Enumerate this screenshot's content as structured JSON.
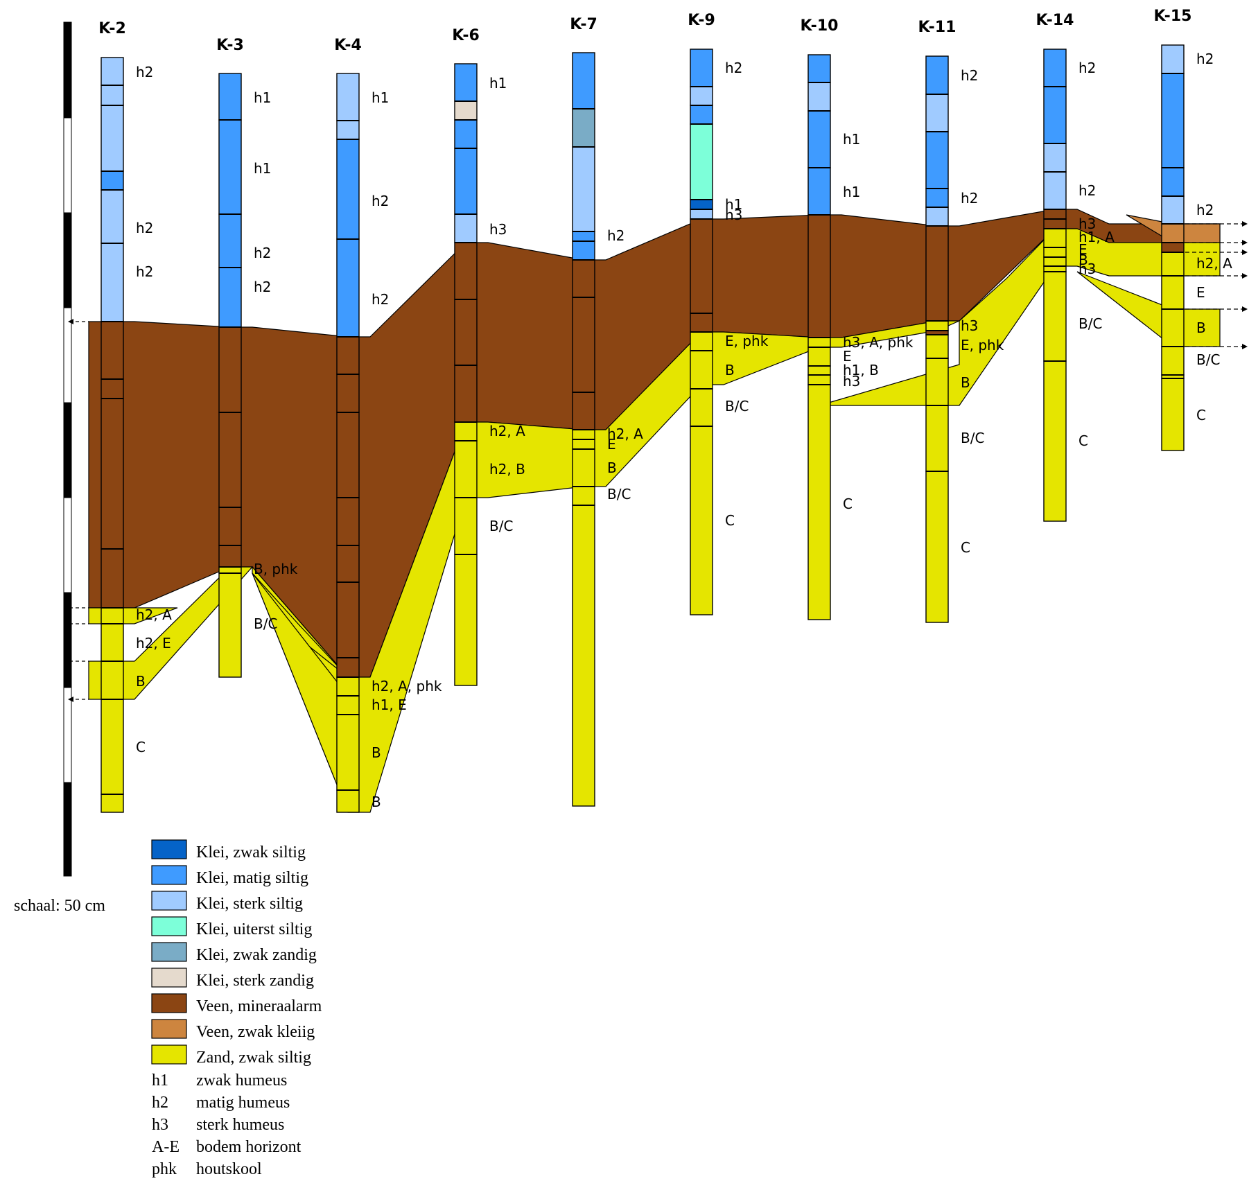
{
  "colors": {
    "klei_zwak_siltig": "#0563c8",
    "klei_matig_siltig": "#3f9bff",
    "klei_sterk_siltig": "#a0cbff",
    "klei_uiterst_siltig": "#7dffd9",
    "klei_zwak_zandig": "#7aacc6",
    "klei_sterk_zandig": "#e5dacd",
    "veen_mineraalarm": "#8b4513",
    "veen_zwak_kleiig": "#cd853f",
    "zand_zwak_siltig": "#e5e500"
  },
  "boreholes": [
    {
      "id": "K-2",
      "layers": [
        [
          "klei_sterk_siltig",
          83,
          123
        ],
        [
          "klei_sterk_siltig",
          123,
          152
        ],
        [
          "klei_sterk_siltig",
          152,
          247
        ],
        [
          "klei_matig_siltig",
          247,
          274
        ],
        [
          "klei_sterk_siltig",
          274,
          351
        ],
        [
          "klei_sterk_siltig",
          351,
          464
        ],
        [
          "veen_mineraalarm",
          464,
          547
        ],
        [
          "veen_mineraalarm",
          547,
          575
        ],
        [
          "veen_mineraalarm",
          575,
          792
        ],
        [
          "veen_mineraalarm",
          792,
          877
        ],
        [
          "zand_zwak_siltig",
          877,
          900
        ],
        [
          "zand_zwak_siltig",
          900,
          954
        ],
        [
          "zand_zwak_siltig",
          954,
          1009
        ],
        [
          "zand_zwak_siltig",
          1009,
          1146
        ],
        [
          "zand_zwak_siltig",
          1146,
          1172
        ]
      ],
      "labels": [
        [
          "h2",
          104
        ],
        [
          "h2",
          329
        ],
        [
          "h2",
          392
        ],
        [
          "h2, A",
          887
        ],
        [
          "h2, E",
          928
        ],
        [
          "B",
          983
        ],
        [
          "C",
          1078
        ]
      ]
    },
    {
      "id": "K-3",
      "layers": [
        [
          "klei_matig_siltig",
          106,
          173
        ],
        [
          "klei_matig_siltig",
          173,
          309
        ],
        [
          "klei_matig_siltig",
          309,
          386
        ],
        [
          "klei_matig_siltig",
          386,
          472
        ],
        [
          "veen_mineraalarm",
          472,
          595
        ],
        [
          "veen_mineraalarm",
          595,
          732
        ],
        [
          "veen_mineraalarm",
          732,
          787
        ],
        [
          "veen_mineraalarm",
          787,
          818
        ],
        [
          "zand_zwak_siltig",
          818,
          827
        ],
        [
          "zand_zwak_siltig",
          827,
          977
        ]
      ],
      "labels": [
        [
          "h1",
          141
        ],
        [
          "h1",
          243
        ],
        [
          "h2",
          365
        ],
        [
          "h2",
          414
        ],
        [
          "B, phk",
          821
        ],
        [
          "B/C",
          900
        ]
      ]
    },
    {
      "id": "K-4",
      "layers": [
        [
          "klei_sterk_siltig",
          106,
          174
        ],
        [
          "klei_sterk_siltig",
          174,
          201
        ],
        [
          "klei_matig_siltig",
          201,
          345
        ],
        [
          "klei_matig_siltig",
          345,
          486
        ],
        [
          "veen_mineraalarm",
          486,
          540
        ],
        [
          "veen_mineraalarm",
          540,
          595
        ],
        [
          "veen_mineraalarm",
          595,
          718
        ],
        [
          "veen_mineraalarm",
          718,
          787
        ],
        [
          "veen_mineraalarm",
          787,
          840
        ],
        [
          "veen_mineraalarm",
          840,
          949
        ],
        [
          "veen_mineraalarm",
          949,
          977
        ],
        [
          "zand_zwak_siltig",
          977,
          1004
        ],
        [
          "zand_zwak_siltig",
          1004,
          1031
        ],
        [
          "zand_zwak_siltig",
          1031,
          1140
        ],
        [
          "zand_zwak_siltig",
          1140,
          1172
        ]
      ],
      "labels": [
        [
          "h1",
          141
        ],
        [
          "h2",
          290
        ],
        [
          "h2",
          432
        ],
        [
          "h2, A, phk",
          990
        ],
        [
          "h1, E",
          1017
        ],
        [
          "B",
          1086
        ],
        [
          "B",
          1157
        ]
      ]
    },
    {
      "id": "K-6",
      "layers": [
        [
          "klei_matig_siltig",
          92,
          146
        ],
        [
          "klei_sterk_zandig",
          146,
          173
        ],
        [
          "klei_matig_siltig",
          173,
          214
        ],
        [
          "klei_matig_siltig",
          214,
          309
        ],
        [
          "klei_sterk_siltig",
          309,
          350
        ],
        [
          "veen_mineraalarm",
          350,
          432
        ],
        [
          "veen_mineraalarm",
          432,
          527
        ],
        [
          "veen_mineraalarm",
          527,
          609
        ],
        [
          "zand_zwak_siltig",
          609,
          636
        ],
        [
          "zand_zwak_siltig",
          636,
          718
        ],
        [
          "zand_zwak_siltig",
          718,
          800
        ],
        [
          "zand_zwak_siltig",
          800,
          989
        ]
      ],
      "labels": [
        [
          "h1",
          120
        ],
        [
          "h3",
          331
        ],
        [
          "h2, A",
          622
        ],
        [
          "h2, B",
          677
        ],
        [
          "B/C",
          759
        ]
      ]
    },
    {
      "id": "K-7",
      "layers": [
        [
          "klei_matig_siltig",
          76,
          157
        ],
        [
          "klei_zwak_zandig",
          157,
          212
        ],
        [
          "klei_sterk_siltig",
          212,
          334
        ],
        [
          "klei_matig_siltig",
          334,
          348
        ],
        [
          "klei_matig_siltig",
          348,
          375
        ],
        [
          "veen_mineraalarm",
          375,
          429
        ],
        [
          "veen_mineraalarm",
          429,
          566
        ],
        [
          "veen_mineraalarm",
          566,
          620
        ],
        [
          "zand_zwak_siltig",
          620,
          634
        ],
        [
          "zand_zwak_siltig",
          634,
          648
        ],
        [
          "zand_zwak_siltig",
          648,
          702
        ],
        [
          "zand_zwak_siltig",
          702,
          729
        ],
        [
          "zand_zwak_siltig",
          729,
          1163
        ]
      ],
      "labels": [
        [
          "h2",
          340
        ],
        [
          "h2, A",
          626
        ],
        [
          "E",
          641
        ],
        [
          "B",
          675
        ],
        [
          "B/C",
          713
        ]
      ]
    },
    {
      "id": "K-9",
      "layers": [
        [
          "klei_matig_siltig",
          71,
          125
        ],
        [
          "klei_sterk_siltig",
          125,
          152
        ],
        [
          "klei_matig_siltig",
          152,
          179
        ],
        [
          "klei_uiterst_siltig",
          179,
          288
        ],
        [
          "klei_zwak_siltig",
          288,
          302
        ],
        [
          "klei_sterk_siltig",
          302,
          316
        ],
        [
          "veen_mineraalarm",
          316,
          452
        ],
        [
          "veen_mineraalarm",
          452,
          479
        ],
        [
          "zand_zwak_siltig",
          479,
          506
        ],
        [
          "zand_zwak_siltig",
          506,
          561
        ],
        [
          "zand_zwak_siltig",
          561,
          615
        ],
        [
          "zand_zwak_siltig",
          615,
          887
        ]
      ],
      "labels": [
        [
          "h2",
          98
        ],
        [
          "h1",
          295
        ],
        [
          "h3",
          310
        ],
        [
          "E, phk",
          492
        ],
        [
          "B",
          534
        ],
        [
          "B/C",
          586
        ],
        [
          "C",
          751
        ]
      ]
    },
    {
      "id": "K-10",
      "layers": [
        [
          "klei_matig_siltig",
          79,
          119
        ],
        [
          "klei_sterk_siltig",
          119,
          160
        ],
        [
          "klei_matig_siltig",
          160,
          242
        ],
        [
          "klei_matig_siltig",
          242,
          310
        ],
        [
          "veen_mineraalarm",
          310,
          487
        ],
        [
          "zand_zwak_siltig",
          487,
          501
        ],
        [
          "zand_zwak_siltig",
          501,
          528
        ],
        [
          "zand_zwak_siltig",
          528,
          541
        ],
        [
          "zand_zwak_siltig",
          541,
          555
        ],
        [
          "zand_zwak_siltig",
          555,
          894
        ]
      ],
      "labels": [
        [
          "h1",
          201
        ],
        [
          "h1",
          277
        ],
        [
          "h3, A, phk",
          494
        ],
        [
          "E",
          514
        ],
        [
          "h1, B",
          534
        ],
        [
          "h3",
          550
        ],
        [
          "C",
          727
        ]
      ]
    },
    {
      "id": "K-11",
      "layers": [
        [
          "klei_matig_siltig",
          81,
          136
        ],
        [
          "klei_sterk_siltig",
          136,
          190
        ],
        [
          "klei_matig_siltig",
          190,
          272
        ],
        [
          "klei_matig_siltig",
          272,
          299
        ],
        [
          "klei_sterk_siltig",
          299,
          326
        ],
        [
          "veen_mineraalarm",
          326,
          463
        ],
        [
          "zand_zwak_siltig",
          463,
          477
        ],
        [
          "veen_mineraalarm",
          477,
          483
        ],
        [
          "zand_zwak_siltig",
          483,
          517
        ],
        [
          "zand_zwak_siltig",
          517,
          585
        ],
        [
          "zand_zwak_siltig",
          585,
          680
        ],
        [
          "zand_zwak_siltig",
          680,
          898
        ]
      ],
      "labels": [
        [
          "h2",
          109
        ],
        [
          "h2",
          286
        ],
        [
          "h3",
          470
        ],
        [
          "E, phk",
          498
        ],
        [
          "B",
          552
        ],
        [
          "B/C",
          632
        ],
        [
          "C",
          790
        ]
      ]
    },
    {
      "id": "K-14",
      "layers": [
        [
          "klei_matig_siltig",
          71,
          125
        ],
        [
          "klei_matig_siltig",
          125,
          207
        ],
        [
          "klei_sterk_siltig",
          207,
          248
        ],
        [
          "klei_sterk_siltig",
          248,
          302
        ],
        [
          "veen_mineraalarm",
          302,
          316
        ],
        [
          "veen_mineraalarm",
          316,
          330
        ],
        [
          "zand_zwak_siltig",
          330,
          357
        ],
        [
          "zand_zwak_siltig",
          357,
          371
        ],
        [
          "zand_zwak_siltig",
          371,
          384
        ],
        [
          "zand_zwak_siltig",
          384,
          392
        ],
        [
          "zand_zwak_siltig",
          392,
          521
        ],
        [
          "zand_zwak_siltig",
          521,
          752
        ]
      ],
      "labels": [
        [
          "h2",
          98
        ],
        [
          "h2",
          275
        ],
        [
          "h3",
          323
        ],
        [
          "h1, A",
          342
        ],
        [
          "E",
          360
        ],
        [
          "B",
          375
        ],
        [
          "h3",
          388
        ],
        [
          "B/C",
          467
        ],
        [
          "C",
          636
        ]
      ]
    },
    {
      "id": "K-15",
      "layers": [
        [
          "klei_sterk_siltig",
          65,
          106
        ],
        [
          "klei_matig_siltig",
          106,
          242
        ],
        [
          "klei_matig_siltig",
          242,
          283
        ],
        [
          "klei_sterk_siltig",
          283,
          323
        ],
        [
          "veen_zwak_kleiig",
          323,
          350
        ],
        [
          "veen_mineraalarm",
          350,
          364
        ],
        [
          "zand_zwak_siltig",
          364,
          398
        ],
        [
          "zand_zwak_siltig",
          398,
          446
        ],
        [
          "zand_zwak_siltig",
          446,
          500
        ],
        [
          "zand_zwak_siltig",
          500,
          541
        ],
        [
          "zand_zwak_siltig",
          541,
          546
        ],
        [
          "zand_zwak_siltig",
          546,
          650
        ]
      ],
      "labels": [
        [
          "h2",
          85
        ],
        [
          "h2",
          303
        ],
        [
          "h2, A",
          380
        ],
        [
          "E",
          422
        ],
        [
          "B",
          473
        ],
        [
          "B/C",
          519
        ],
        [
          "C",
          599
        ]
      ]
    }
  ],
  "legend": {
    "items": [
      {
        "key": "klei_zwak_siltig",
        "label": "Klei, zwak siltig"
      },
      {
        "key": "klei_matig_siltig",
        "label": "Klei, matig siltig"
      },
      {
        "key": "klei_sterk_siltig",
        "label": "Klei, sterk siltig"
      },
      {
        "key": "klei_uiterst_siltig",
        "label": "Klei, uiterst siltig"
      },
      {
        "key": "klei_zwak_zandig",
        "label": "Klei, zwak zandig"
      },
      {
        "key": "klei_sterk_zandig",
        "label": "Klei, sterk zandig"
      },
      {
        "key": "veen_mineraalarm",
        "label": "Veen, mineraalarm"
      },
      {
        "key": "veen_zwak_kleiig",
        "label": "Veen, zwak kleiig"
      },
      {
        "key": "zand_zwak_siltig",
        "label": "Zand, zwak siltig"
      }
    ],
    "abbreviations": [
      {
        "code": "h1",
        "meaning": "zwak humeus"
      },
      {
        "code": "h2",
        "meaning": "matig humeus"
      },
      {
        "code": "h3",
        "meaning": "sterk humeus"
      },
      {
        "code": "A-E",
        "meaning": "bodem horizont"
      },
      {
        "code": "phk",
        "meaning": "houtskool"
      }
    ]
  },
  "scale": {
    "label": "schaal: 50 cm"
  }
}
